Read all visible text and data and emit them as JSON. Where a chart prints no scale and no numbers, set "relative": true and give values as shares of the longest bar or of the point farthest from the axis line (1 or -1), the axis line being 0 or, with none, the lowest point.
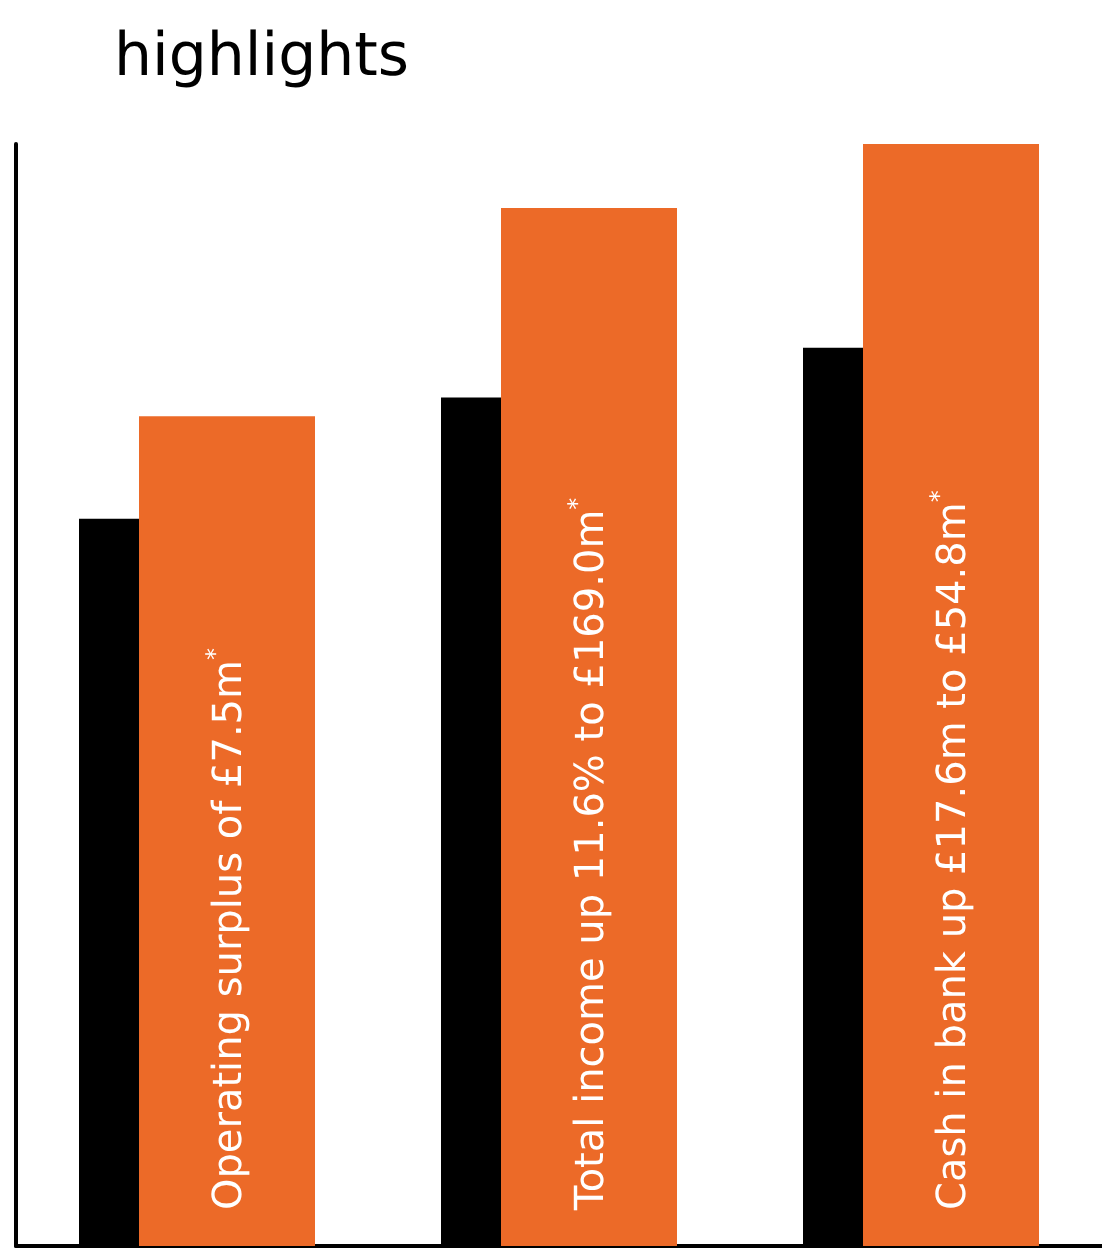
{
  "chart_data": {
    "type": "bar",
    "title": "highlights",
    "relative": true,
    "categories": [
      "Operating surplus of £7.5m$^{*}$",
      "Total income up 11.6% to £169.0m$^{*}$",
      "Cash in bank up £17.6m to £54.8m$^{*}$"
    ],
    "series": [
      {
        "color": "#000000",
        "values": [
          0.66,
          0.77,
          0.815
        ]
      },
      {
        "color": "#ec6a28",
        "values": [
          0.753,
          0.942,
          1
        ]
      }
    ]
  }
}
